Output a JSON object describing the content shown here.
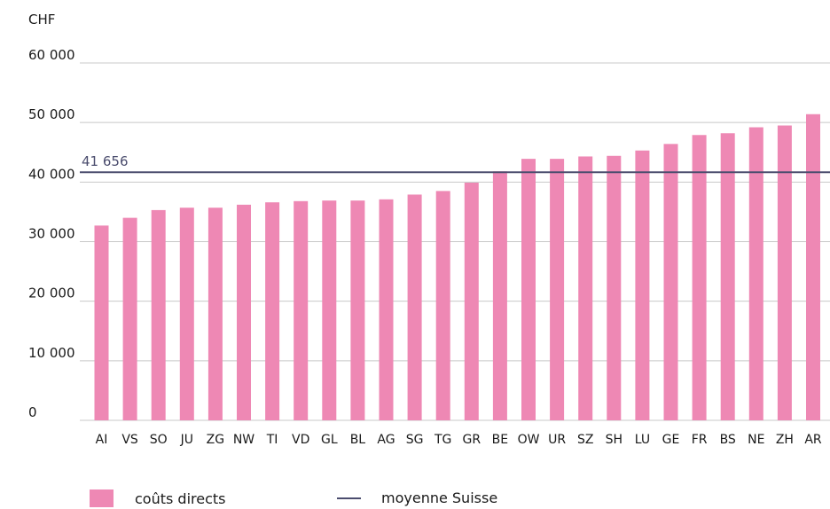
{
  "chart_data": {
    "type": "bar",
    "unit_label": "CHF",
    "categories": [
      "AI",
      "VS",
      "SO",
      "JU",
      "ZG",
      "NW",
      "TI",
      "VD",
      "GL",
      "BL",
      "AG",
      "SG",
      "TG",
      "GR",
      "BE",
      "OW",
      "UR",
      "SZ",
      "SH",
      "LU",
      "GE",
      "FR",
      "BS",
      "NE",
      "ZH",
      "AR"
    ],
    "series": [
      {
        "name": "coûts directs",
        "color": "#ee88b4",
        "values": [
          32700,
          34000,
          35300,
          35700,
          35700,
          36200,
          36600,
          36800,
          36900,
          36900,
          37100,
          37900,
          38500,
          39900,
          41800,
          43900,
          43900,
          44300,
          44400,
          45300,
          46400,
          47900,
          48200,
          49200,
          49500,
          51400
        ]
      }
    ],
    "reference_line": {
      "name": "moyenne Suisse",
      "value": 41656,
      "label": "41 656",
      "color": "#4b4d6e"
    },
    "y_ticks": [
      "0",
      "10 000",
      "20 000",
      "30 000",
      "40 000",
      "50 000",
      "60 000"
    ],
    "ylim": [
      0,
      60000
    ],
    "grid": true,
    "legend_position": "bottom-left"
  }
}
